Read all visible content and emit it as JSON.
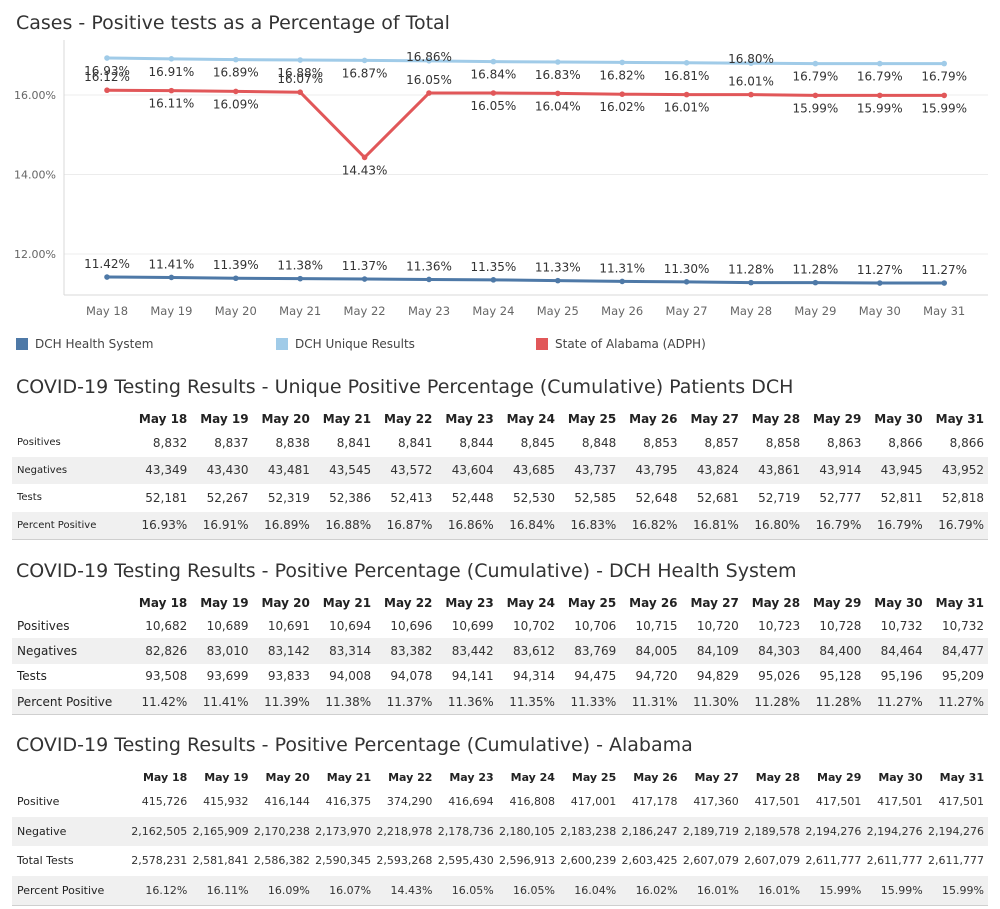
{
  "chart_title": "Cases - Positive tests as a Percentage of Total",
  "chart_data": {
    "type": "line",
    "title": "Cases - Positive tests as a Percentage of Total",
    "categories": [
      "May 18",
      "May 19",
      "May 20",
      "May 21",
      "May 22",
      "May 23",
      "May 24",
      "May 25",
      "May 26",
      "May 27",
      "May 28",
      "May 29",
      "May 30",
      "May 31"
    ],
    "ylim": [
      11.0,
      17.0
    ],
    "yticks": [
      "12.00%",
      "14.00%",
      "16.00%"
    ],
    "grid": true,
    "legend_position": "bottom",
    "series": [
      {
        "name": "DCH Health System",
        "color": "#4e79a7",
        "values": [
          11.42,
          11.41,
          11.39,
          11.38,
          11.37,
          11.36,
          11.35,
          11.33,
          11.31,
          11.3,
          11.28,
          11.28,
          11.27,
          11.27
        ],
        "labels": [
          "11.42%",
          "11.41%",
          "11.39%",
          "11.38%",
          "11.37%",
          "11.36%",
          "11.35%",
          "11.33%",
          "11.31%",
          "11.30%",
          "11.28%",
          "11.28%",
          "11.27%",
          "11.27%"
        ]
      },
      {
        "name": "DCH Unique Results",
        "color": "#a0cbe8",
        "values": [
          16.93,
          16.91,
          16.89,
          16.88,
          16.87,
          16.86,
          16.84,
          16.83,
          16.82,
          16.81,
          16.8,
          16.79,
          16.79,
          16.79
        ],
        "labels": [
          "16.93%",
          "16.91%",
          "16.89%",
          "16.88%",
          "16.87%",
          "16.86%",
          "16.84%",
          "16.83%",
          "16.82%",
          "16.81%",
          "16.80%",
          "16.79%",
          "16.79%",
          "16.79%"
        ]
      },
      {
        "name": "State of Alabama (ADPH)",
        "color": "#e15759",
        "values": [
          16.12,
          16.11,
          16.09,
          16.07,
          14.43,
          16.05,
          16.05,
          16.04,
          16.02,
          16.01,
          16.01,
          15.99,
          15.99,
          15.99
        ],
        "labels": [
          "16.12%",
          "16.11%",
          "16.09%",
          "16.07%",
          "14.43%",
          "16.05%",
          "16.05%",
          "16.04%",
          "16.02%",
          "16.01%",
          "16.01%",
          "15.99%",
          "15.99%",
          "15.99%"
        ]
      }
    ]
  },
  "tables": [
    {
      "title": "COVID-19 Testing Results - Unique Positive Percentage (Cumulative) Patients DCH",
      "columns": [
        "May 18",
        "May 19",
        "May 20",
        "May 21",
        "May 22",
        "May 23",
        "May 24",
        "May 25",
        "May 26",
        "May 27",
        "May 28",
        "May 29",
        "May 30",
        "May 31"
      ],
      "rows": [
        {
          "label": "Positives",
          "values": [
            "8,832",
            "8,837",
            "8,838",
            "8,841",
            "8,841",
            "8,844",
            "8,845",
            "8,848",
            "8,853",
            "8,857",
            "8,858",
            "8,863",
            "8,866",
            "8,866"
          ]
        },
        {
          "label": "Negatives",
          "values": [
            "43,349",
            "43,430",
            "43,481",
            "43,545",
            "43,572",
            "43,604",
            "43,685",
            "43,737",
            "43,795",
            "43,824",
            "43,861",
            "43,914",
            "43,945",
            "43,952"
          ]
        },
        {
          "label": "Tests",
          "values": [
            "52,181",
            "52,267",
            "52,319",
            "52,386",
            "52,413",
            "52,448",
            "52,530",
            "52,585",
            "52,648",
            "52,681",
            "52,719",
            "52,777",
            "52,811",
            "52,818"
          ]
        },
        {
          "label": "Percent Positive",
          "values": [
            "16.93%",
            "16.91%",
            "16.89%",
            "16.88%",
            "16.87%",
            "16.86%",
            "16.84%",
            "16.83%",
            "16.82%",
            "16.81%",
            "16.80%",
            "16.79%",
            "16.79%",
            "16.79%"
          ]
        }
      ]
    },
    {
      "title": "COVID-19 Testing Results - Positive Percentage (Cumulative) - DCH Health System",
      "columns": [
        "May 18",
        "May 19",
        "May 20",
        "May 21",
        "May 22",
        "May 23",
        "May 24",
        "May 25",
        "May 26",
        "May 27",
        "May 28",
        "May 29",
        "May 30",
        "May 31"
      ],
      "rows": [
        {
          "label": "Positives",
          "values": [
            "10,682",
            "10,689",
            "10,691",
            "10,694",
            "10,696",
            "10,699",
            "10,702",
            "10,706",
            "10,715",
            "10,720",
            "10,723",
            "10,728",
            "10,732",
            "10,732"
          ]
        },
        {
          "label": "Negatives",
          "values": [
            "82,826",
            "83,010",
            "83,142",
            "83,314",
            "83,382",
            "83,442",
            "83,612",
            "83,769",
            "84,005",
            "84,109",
            "84,303",
            "84,400",
            "84,464",
            "84,477"
          ]
        },
        {
          "label": "Tests",
          "values": [
            "93,508",
            "93,699",
            "93,833",
            "94,008",
            "94,078",
            "94,141",
            "94,314",
            "94,475",
            "94,720",
            "94,829",
            "95,026",
            "95,128",
            "95,196",
            "95,209"
          ]
        },
        {
          "label": "Percent Positive",
          "values": [
            "11.42%",
            "11.41%",
            "11.39%",
            "11.38%",
            "11.37%",
            "11.36%",
            "11.35%",
            "11.33%",
            "11.31%",
            "11.30%",
            "11.28%",
            "11.28%",
            "11.27%",
            "11.27%"
          ]
        }
      ]
    },
    {
      "title": "COVID-19 Testing Results - Positive Percentage (Cumulative) - Alabama",
      "columns": [
        "May 18",
        "May 19",
        "May 20",
        "May 21",
        "May 22",
        "May 23",
        "May 24",
        "May 25",
        "May 26",
        "May 27",
        "May 28",
        "May 29",
        "May 30",
        "May 31"
      ],
      "rows": [
        {
          "label": "Positive",
          "values": [
            "415,726",
            "415,932",
            "416,144",
            "416,375",
            "374,290",
            "416,694",
            "416,808",
            "417,001",
            "417,178",
            "417,360",
            "417,501",
            "417,501",
            "417,501",
            "417,501"
          ]
        },
        {
          "label": "Negative",
          "values": [
            "2,162,505",
            "2,165,909",
            "2,170,238",
            "2,173,970",
            "2,218,978",
            "2,178,736",
            "2,180,105",
            "2,183,238",
            "2,186,247",
            "2,189,719",
            "2,189,578",
            "2,194,276",
            "2,194,276",
            "2,194,276"
          ]
        },
        {
          "label": "Total Tests",
          "values": [
            "2,578,231",
            "2,581,841",
            "2,586,382",
            "2,590,345",
            "2,593,268",
            "2,595,430",
            "2,596,913",
            "2,600,239",
            "2,603,425",
            "2,607,079",
            "2,607,079",
            "2,611,777",
            "2,611,777",
            "2,611,777"
          ]
        },
        {
          "label": "Percent Positive",
          "values": [
            "16.12%",
            "16.11%",
            "16.09%",
            "16.07%",
            "14.43%",
            "16.05%",
            "16.05%",
            "16.04%",
            "16.02%",
            "16.01%",
            "16.01%",
            "15.99%",
            "15.99%",
            "15.99%"
          ]
        }
      ]
    }
  ]
}
